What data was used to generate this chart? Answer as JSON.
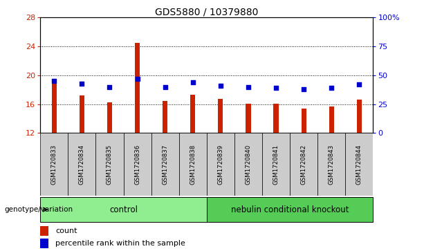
{
  "title": "GDS5880 / 10379880",
  "samples": [
    "GSM1720833",
    "GSM1720834",
    "GSM1720835",
    "GSM1720836",
    "GSM1720837",
    "GSM1720838",
    "GSM1720839",
    "GSM1720840",
    "GSM1720841",
    "GSM1720842",
    "GSM1720843",
    "GSM1720844"
  ],
  "count_values": [
    19.0,
    17.2,
    16.3,
    24.5,
    16.4,
    17.3,
    16.7,
    16.1,
    16.1,
    15.4,
    15.7,
    16.6
  ],
  "percentile_values": [
    45,
    43,
    40,
    47,
    40,
    44,
    41,
    40,
    39,
    38,
    39,
    42
  ],
  "ylim_left": [
    12,
    28
  ],
  "ylim_right": [
    0,
    100
  ],
  "yticks_left": [
    12,
    16,
    20,
    24,
    28
  ],
  "yticks_right": [
    0,
    25,
    50,
    75,
    100
  ],
  "bar_color": "#cc2200",
  "dot_color": "#0000cc",
  "control_label": "control",
  "knockout_label": "nebulin conditional knockout",
  "genotype_label": "genotype/variation",
  "legend_count": "count",
  "legend_percentile": "percentile rank within the sample",
  "tick_label_color_left": "#cc2200",
  "tick_label_color_right": "#0000cc",
  "sample_bg_color": "#cccccc",
  "bar_bottom": 12,
  "control_bg": "#90ee90",
  "knockout_bg": "#55cc55"
}
